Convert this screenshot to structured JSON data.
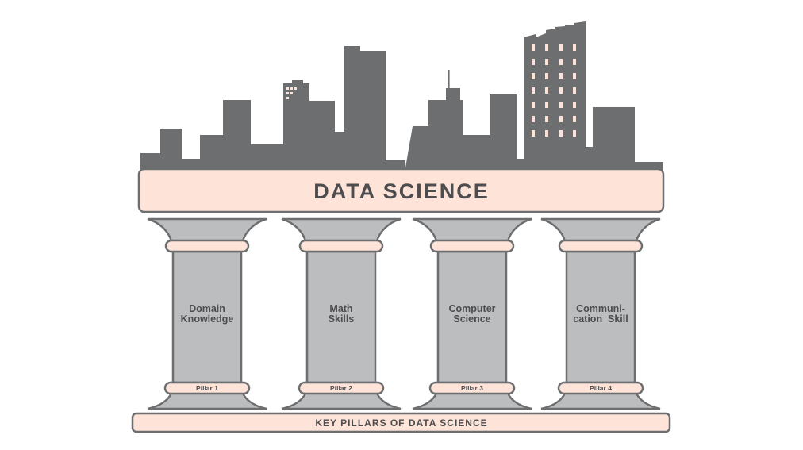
{
  "title": "DATA SCIENCE",
  "base_label": "KEY PILLARS OF DATA SCIENCE",
  "pillars": [
    {
      "lines": [
        "Domain",
        "Knowledge"
      ],
      "tag": "Pillar 1"
    },
    {
      "lines": [
        "Math",
        "Skills"
      ],
      "tag": "Pillar 2"
    },
    {
      "lines": [
        "Computer",
        "Science"
      ],
      "tag": "Pillar 3"
    },
    {
      "lines": [
        "Communi-",
        "cation  Skill"
      ],
      "tag": "Pillar 4"
    }
  ],
  "colors": {
    "skyline": "#6d6e70",
    "peach": "#fde3d8",
    "outline": "#6d6e70",
    "pillar_fill": "#bcbdbf",
    "window": "#fde3d8",
    "text": "#4d4d4f"
  }
}
